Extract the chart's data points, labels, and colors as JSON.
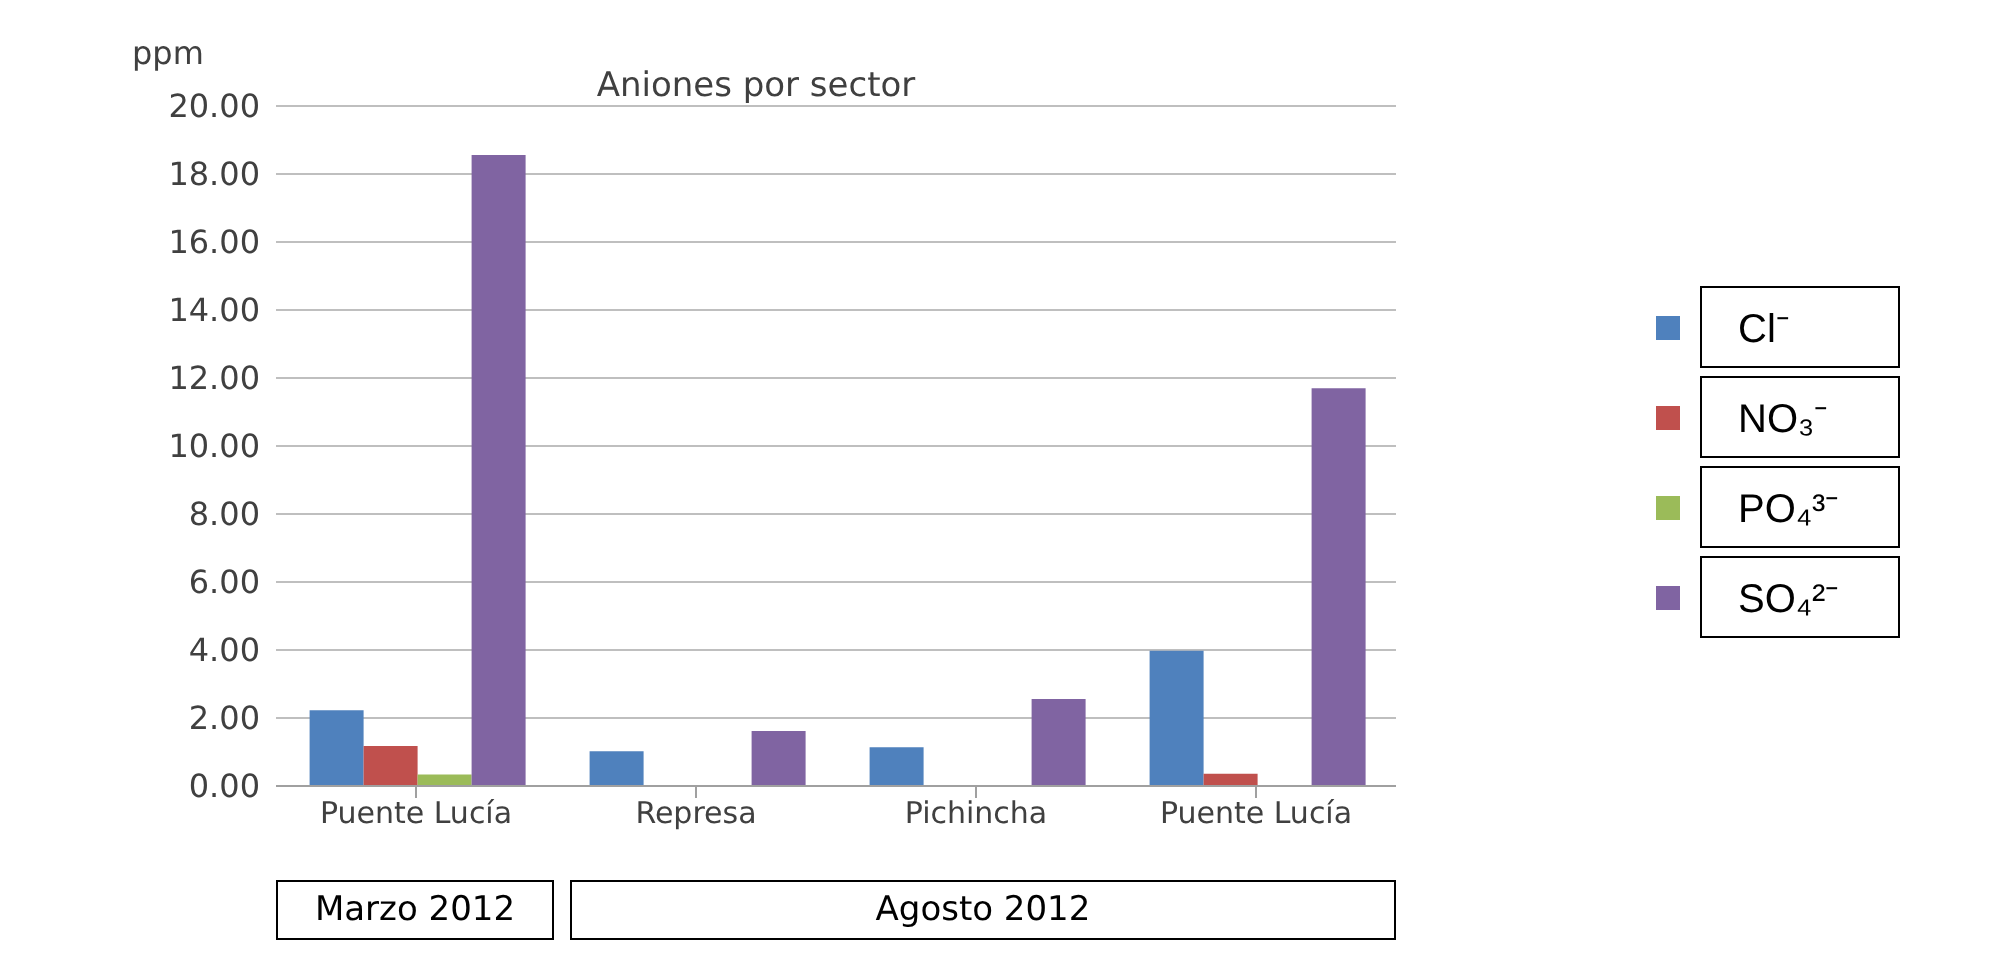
{
  "chart_data": {
    "type": "bar",
    "title": "Aniones por sector",
    "ylabel": "ppm",
    "categories": [
      "Puente Lucía",
      "Represa",
      "Pichincha",
      "Puente Lucía"
    ],
    "series": [
      {
        "name": "Cl⁻",
        "color": "#4f81bd",
        "values": [
          2.23,
          1.02,
          1.14,
          3.98
        ]
      },
      {
        "name": "NO₃⁻",
        "color": "#c0504d",
        "values": [
          1.18,
          null,
          null,
          0.36
        ]
      },
      {
        "name": "PO₄³⁻",
        "color": "#9bbb59",
        "values": [
          0.34,
          null,
          null,
          null
        ]
      },
      {
        "name": "SO₄²⁻",
        "color": "#8064a2",
        "values": [
          18.56,
          1.62,
          2.56,
          11.7
        ]
      }
    ],
    "ylim": [
      0,
      20
    ],
    "yticks": [
      {
        "value": 0,
        "label": "0.00"
      },
      {
        "value": 2,
        "label": "2.00"
      },
      {
        "value": 4,
        "label": "4.00"
      },
      {
        "value": 6,
        "label": "6.00"
      },
      {
        "value": 8,
        "label": "8.00"
      },
      {
        "value": 10,
        "label": "10.00"
      },
      {
        "value": 12,
        "label": "12.00"
      },
      {
        "value": 14,
        "label": "14.00"
      },
      {
        "value": 16,
        "label": "16.00"
      },
      {
        "value": 18,
        "label": "18.00"
      },
      {
        "value": 20,
        "label": "20.00"
      }
    ],
    "grid": "y",
    "legend": "right",
    "annotations": [
      "Marzo 2012",
      "Agosto  2012"
    ]
  }
}
